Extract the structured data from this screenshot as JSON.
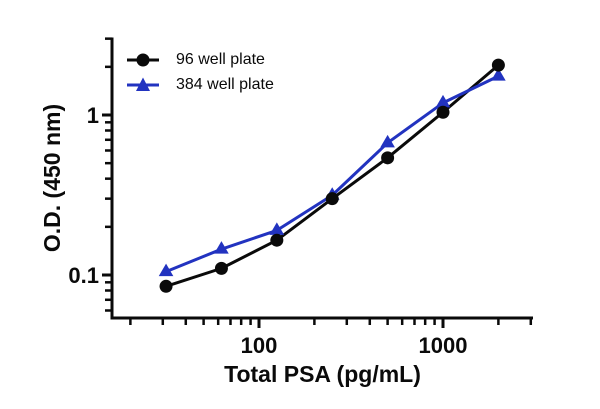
{
  "figure": {
    "background_color": "#ffffff",
    "text_color": "#0a0a0a"
  },
  "chart_data": {
    "type": "line",
    "title": "",
    "xlabel": "Total PSA (pg/mL)",
    "ylabel": "O.D. (450 nm)",
    "x_scale": "log",
    "y_scale": "log",
    "grid": false,
    "x": [
      31.25,
      62.5,
      125,
      250,
      500,
      1000,
      2000
    ],
    "series": [
      {
        "name": "96 well plate",
        "color": "#0a0a0a",
        "marker": "circle",
        "values": [
          0.085,
          0.11,
          0.165,
          0.3,
          0.54,
          1.04,
          2.05
        ]
      },
      {
        "name": "384 well plate",
        "color": "#2233c0",
        "marker": "triangle",
        "values": [
          0.105,
          0.145,
          0.19,
          0.315,
          0.67,
          1.19,
          1.75
        ]
      }
    ],
    "x_axis": {
      "range": [
        16,
        3150
      ],
      "major_ticks": [
        100,
        1000
      ],
      "major_tick_labels": [
        "100",
        "1000"
      ],
      "minor_ticks": [
        20,
        30,
        40,
        50,
        60,
        70,
        80,
        90,
        200,
        300,
        400,
        500,
        600,
        700,
        800,
        900,
        2000,
        3000
      ]
    },
    "y_axis": {
      "range": [
        0.053,
        3.05
      ],
      "major_ticks": [
        1,
        0.1
      ],
      "major_tick_labels": [
        "1",
        "0.1"
      ],
      "minor_ticks": [
        3,
        2,
        0.9,
        0.8,
        0.7,
        0.6,
        0.5,
        0.4,
        0.3,
        0.2,
        0.09,
        0.08,
        0.07,
        0.06
      ]
    },
    "legend": {
      "position": "top-left-inside",
      "entries": [
        "96 well plate",
        "384 well plate"
      ]
    }
  }
}
